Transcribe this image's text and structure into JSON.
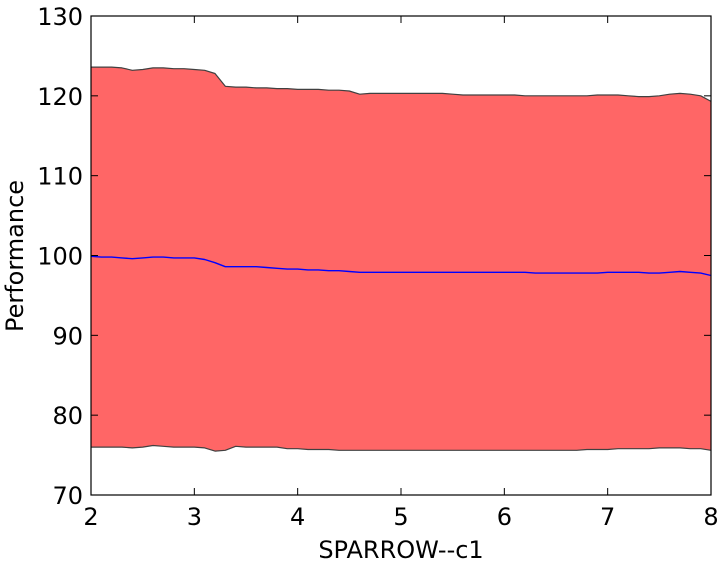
{
  "chart_data": {
    "type": "area",
    "title": "",
    "xlabel": "SPARROW--c1",
    "ylabel": "Performance",
    "xlim": [
      2,
      8
    ],
    "ylim": [
      70,
      130
    ],
    "xticks": [
      2,
      3,
      4,
      5,
      6,
      7,
      8
    ],
    "yticks": [
      70,
      80,
      90,
      100,
      110,
      120,
      130
    ],
    "grid": false,
    "legend": "none",
    "colors": {
      "band_fill": "#ff6666",
      "band_edge": "#404040",
      "mean_line": "#0000ff",
      "axes": "#000000"
    },
    "x": [
      2.0,
      2.1,
      2.2,
      2.3,
      2.4,
      2.5,
      2.6,
      2.7,
      2.8,
      2.9,
      3.0,
      3.1,
      3.2,
      3.3,
      3.4,
      3.5,
      3.6,
      3.7,
      3.8,
      3.9,
      4.0,
      4.1,
      4.2,
      4.3,
      4.4,
      4.5,
      4.6,
      4.7,
      4.8,
      4.9,
      5.0,
      5.1,
      5.2,
      5.3,
      5.4,
      5.5,
      5.6,
      5.7,
      5.8,
      5.9,
      6.0,
      6.1,
      6.2,
      6.3,
      6.4,
      6.5,
      6.6,
      6.7,
      6.8,
      6.9,
      7.0,
      7.1,
      7.2,
      7.3,
      7.4,
      7.5,
      7.6,
      7.7,
      7.8,
      7.9,
      8.0
    ],
    "upper": [
      123.6,
      123.6,
      123.6,
      123.5,
      123.2,
      123.3,
      123.5,
      123.5,
      123.4,
      123.4,
      123.3,
      123.2,
      122.8,
      121.2,
      121.1,
      121.1,
      121.0,
      121.0,
      120.9,
      120.9,
      120.8,
      120.8,
      120.8,
      120.7,
      120.7,
      120.6,
      120.2,
      120.3,
      120.3,
      120.3,
      120.3,
      120.3,
      120.3,
      120.3,
      120.3,
      120.2,
      120.1,
      120.1,
      120.1,
      120.1,
      120.1,
      120.1,
      120.0,
      120.0,
      120.0,
      120.0,
      120.0,
      120.0,
      120.0,
      120.1,
      120.1,
      120.1,
      120.0,
      119.9,
      119.9,
      120.0,
      120.2,
      120.3,
      120.2,
      120.0,
      119.3
    ],
    "mean": [
      99.9,
      99.8,
      99.8,
      99.7,
      99.6,
      99.7,
      99.8,
      99.8,
      99.7,
      99.7,
      99.7,
      99.5,
      99.1,
      98.6,
      98.6,
      98.6,
      98.6,
      98.5,
      98.4,
      98.3,
      98.3,
      98.2,
      98.2,
      98.1,
      98.1,
      98.0,
      97.9,
      97.9,
      97.9,
      97.9,
      97.9,
      97.9,
      97.9,
      97.9,
      97.9,
      97.9,
      97.9,
      97.9,
      97.9,
      97.9,
      97.9,
      97.9,
      97.9,
      97.8,
      97.8,
      97.8,
      97.8,
      97.8,
      97.8,
      97.8,
      97.9,
      97.9,
      97.9,
      97.9,
      97.8,
      97.8,
      97.9,
      98.0,
      97.9,
      97.8,
      97.5
    ],
    "lower": [
      76.0,
      76.0,
      76.0,
      76.0,
      75.9,
      76.0,
      76.2,
      76.1,
      76.0,
      76.0,
      76.0,
      75.9,
      75.5,
      75.6,
      76.1,
      76.0,
      76.0,
      76.0,
      76.0,
      75.8,
      75.8,
      75.7,
      75.7,
      75.7,
      75.6,
      75.6,
      75.6,
      75.6,
      75.6,
      75.6,
      75.6,
      75.6,
      75.6,
      75.6,
      75.6,
      75.6,
      75.6,
      75.6,
      75.6,
      75.6,
      75.6,
      75.6,
      75.6,
      75.6,
      75.6,
      75.6,
      75.6,
      75.6,
      75.7,
      75.7,
      75.7,
      75.8,
      75.8,
      75.8,
      75.8,
      75.9,
      75.9,
      75.9,
      75.8,
      75.8,
      75.6
    ]
  }
}
